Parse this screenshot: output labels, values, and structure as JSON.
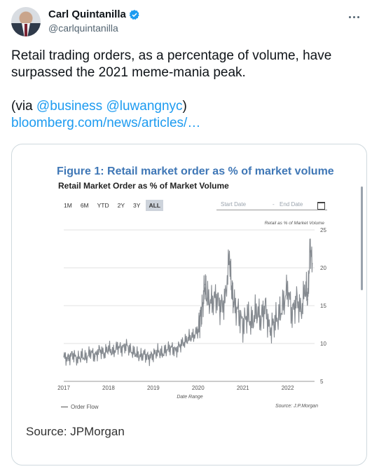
{
  "author": {
    "name": "Carl Quintanilla",
    "handle": "@carlquintanilla",
    "verified": true
  },
  "tweet": {
    "text": "Retail trading orders, as a percentage of volume, have surpassed the 2021 meme-mania peak.",
    "via_prefix": "(via ",
    "mention1": "@business",
    "mention2": "@luwangnyc",
    "via_suffix": ")",
    "link": "bloomberg.com/news/articles/…"
  },
  "card": {
    "source": "Source: JPMorgan",
    "figure_title": "Figure 1: Retail market order as % of market volume",
    "figure_subtitle": "Retail Market Order as % of Market Volume",
    "ranges": [
      "1M",
      "6M",
      "YTD",
      "2Y",
      "3Y",
      "ALL"
    ],
    "active_range": "ALL",
    "start_date_placeholder": "Start Date",
    "end_date_placeholder": "End Date",
    "legend": "Order Flow",
    "note": "Source: J.P.Morgan"
  },
  "chart_data": {
    "type": "line",
    "title": "Retail Market Order as % of Market Volume",
    "series_label": "Retail as % of Market Volume",
    "xlabel": "Date Range",
    "ylabel": "",
    "x_ticks": [
      "2017",
      "2018",
      "2019",
      "2020",
      "2021",
      "2022"
    ],
    "y_ticks": [
      5,
      10,
      15,
      20,
      25
    ],
    "ylim": [
      5,
      25
    ],
    "xlim": [
      2017.0,
      2022.6
    ],
    "series": [
      {
        "name": "Order Flow",
        "x": [
          2017.0,
          2017.1,
          2017.2,
          2017.3,
          2017.4,
          2017.5,
          2017.6,
          2017.7,
          2017.8,
          2017.9,
          2018.0,
          2018.1,
          2018.2,
          2018.3,
          2018.4,
          2018.5,
          2018.6,
          2018.7,
          2018.8,
          2018.9,
          2019.0,
          2019.1,
          2019.2,
          2019.3,
          2019.4,
          2019.5,
          2019.6,
          2019.7,
          2019.8,
          2019.9,
          2020.0,
          2020.05,
          2020.1,
          2020.15,
          2020.2,
          2020.3,
          2020.4,
          2020.5,
          2020.6,
          2020.7,
          2020.75,
          2020.8,
          2020.9,
          2021.0,
          2021.1,
          2021.2,
          2021.3,
          2021.4,
          2021.5,
          2021.6,
          2021.7,
          2021.8,
          2021.9,
          2022.0,
          2022.1,
          2022.2,
          2022.3,
          2022.4,
          2022.45,
          2022.5,
          2022.55
        ],
        "values": [
          8.2,
          8.0,
          8.6,
          7.9,
          8.4,
          8.1,
          8.9,
          8.3,
          9.2,
          8.6,
          9.4,
          8.8,
          9.6,
          9.3,
          9.8,
          9.0,
          8.7,
          8.3,
          8.6,
          8.1,
          8.5,
          9.0,
          8.6,
          9.2,
          9.5,
          9.0,
          9.8,
          10.2,
          10.8,
          11.0,
          11.8,
          13.6,
          14.9,
          17.8,
          16.0,
          15.4,
          16.2,
          14.8,
          15.6,
          21.5,
          17.0,
          15.2,
          14.2,
          12.4,
          13.8,
          12.6,
          14.4,
          13.2,
          15.0,
          11.6,
          12.8,
          13.6,
          15.1,
          17.4,
          13.8,
          15.9,
          14.2,
          17.6,
          15.8,
          22.8,
          20.6
        ]
      }
    ],
    "grid": true,
    "legend_position": "bottom-left"
  }
}
